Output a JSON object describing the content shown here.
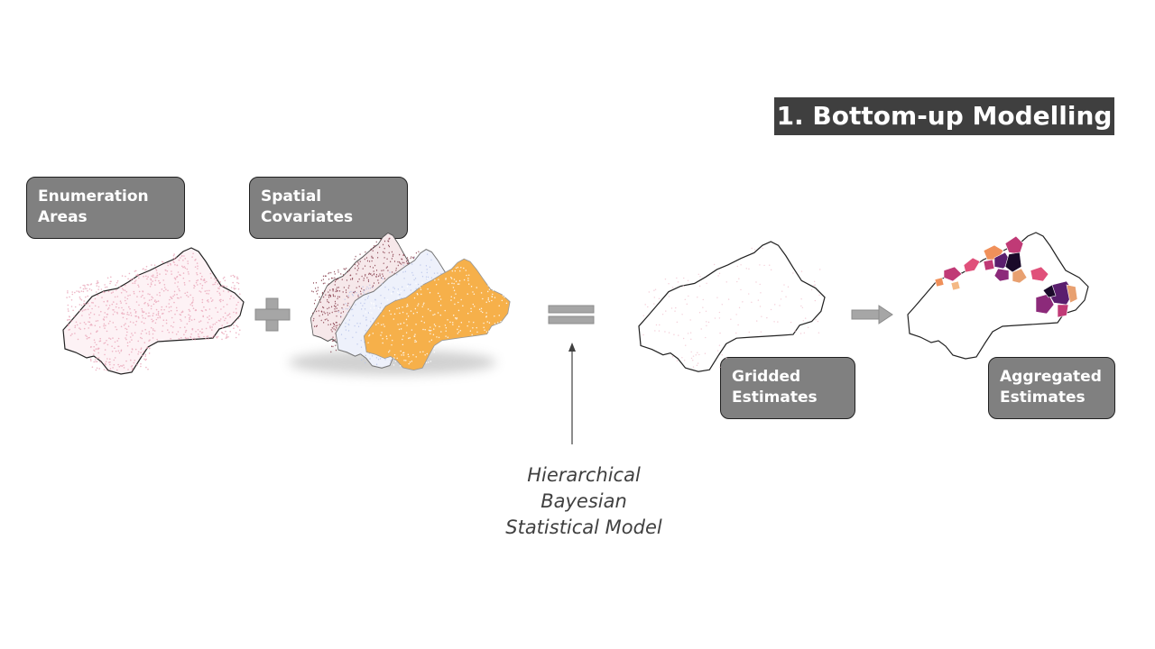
{
  "title": "1. Bottom-up Modelling",
  "boxes": {
    "enumeration": [
      "Enumeration",
      "Areas"
    ],
    "covariates": [
      "Spatial",
      "Covariates"
    ],
    "gridded": [
      "Gridded",
      "Estimates"
    ],
    "aggregated": [
      "Aggregated",
      "Estimates"
    ]
  },
  "model_caption": [
    "Hierarchical",
    "Bayesian",
    "Statistical Model"
  ],
  "colors": {
    "box_fill": "#808080",
    "title_fill": "#3f3f3f",
    "operator": "#a6a6a6",
    "enumeration_dots": "#e8a0b4",
    "covariate_orange": "#f0a030",
    "covariate_maroon": "#7a2a3a",
    "covariate_blue": "#b8c4ea"
  }
}
